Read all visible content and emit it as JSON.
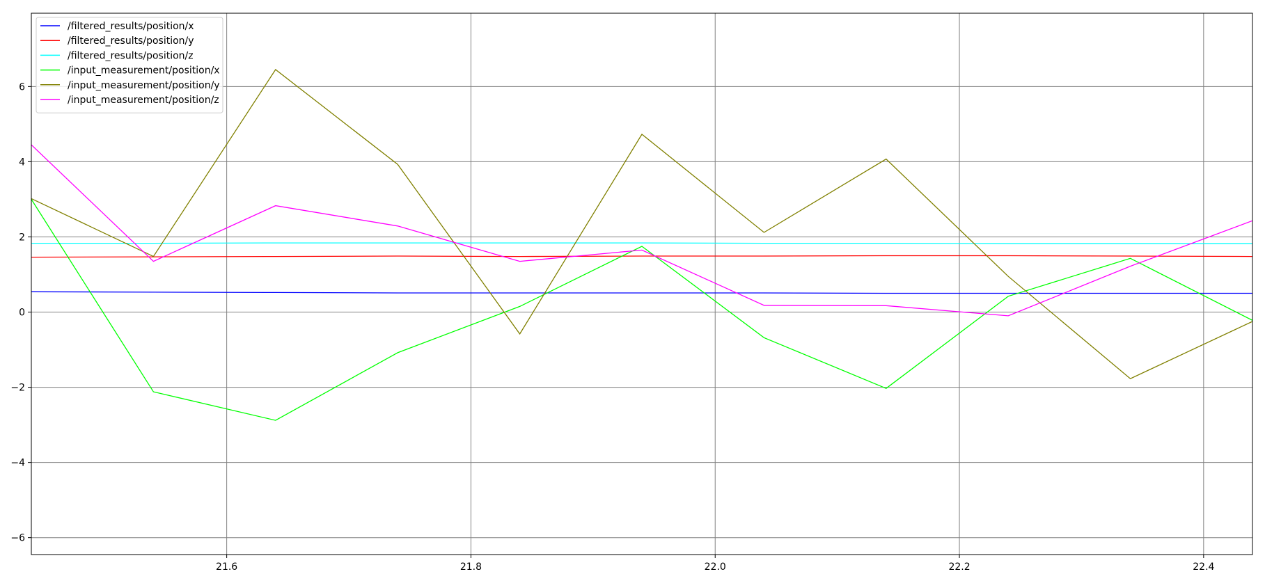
{
  "chart_data": {
    "type": "line",
    "title": "",
    "xlabel": "",
    "ylabel": "",
    "xlim": [
      21.44,
      22.44
    ],
    "ylim": [
      -6.45,
      7.95
    ],
    "grid": true,
    "legend_position": "top-left",
    "x_ticks": [
      21.6,
      21.8,
      22.0,
      22.2,
      22.4
    ],
    "x_tick_labels": [
      "21.6",
      "21.8",
      "22.0",
      "22.2",
      "22.4"
    ],
    "y_ticks": [
      -6,
      -4,
      -2,
      0,
      2,
      4,
      6
    ],
    "y_tick_labels": [
      "−6",
      "−4",
      "−2",
      "0",
      "2",
      "4",
      "6"
    ],
    "series": [
      {
        "name": "/filtered_results/position/x",
        "color": "#0000ff",
        "x": [
          21.44,
          21.54,
          21.64,
          21.74,
          21.84,
          21.94,
          22.04,
          22.14,
          22.24,
          22.34,
          22.44
        ],
        "y": [
          0.54,
          0.53,
          0.52,
          0.51,
          0.51,
          0.51,
          0.51,
          0.5,
          0.5,
          0.5,
          0.5
        ]
      },
      {
        "name": "/filtered_results/position/y",
        "color": "#ff0000",
        "x": [
          21.44,
          21.54,
          21.64,
          21.74,
          21.84,
          21.94,
          22.04,
          22.14,
          22.24,
          22.34,
          22.44
        ],
        "y": [
          1.46,
          1.47,
          1.48,
          1.49,
          1.48,
          1.49,
          1.49,
          1.5,
          1.5,
          1.49,
          1.48
        ]
      },
      {
        "name": "/filtered_results/position/z",
        "color": "#00ffff",
        "x": [
          21.44,
          21.54,
          21.64,
          21.74,
          21.84,
          21.94,
          22.04,
          22.14,
          22.24,
          22.34,
          22.44
        ],
        "y": [
          1.83,
          1.83,
          1.84,
          1.84,
          1.84,
          1.84,
          1.83,
          1.83,
          1.82,
          1.82,
          1.82
        ]
      },
      {
        "name": "/input_measurement/position/x",
        "color": "#00ff00",
        "x": [
          21.44,
          21.54,
          21.64,
          21.74,
          21.84,
          21.94,
          22.04,
          22.14,
          22.24,
          22.34,
          22.44
        ],
        "y": [
          3.0,
          -2.12,
          -2.88,
          -1.08,
          0.15,
          1.75,
          -0.68,
          -2.03,
          0.42,
          1.43,
          -0.22
        ]
      },
      {
        "name": "/input_measurement/position/y",
        "color": "#808000",
        "x": [
          21.44,
          21.54,
          21.64,
          21.74,
          21.84,
          21.94,
          22.04,
          22.14,
          22.24,
          22.34,
          22.44
        ],
        "y": [
          3.02,
          1.48,
          6.45,
          3.93,
          -0.58,
          4.73,
          2.12,
          4.07,
          0.95,
          -1.77,
          -0.25
        ]
      },
      {
        "name": "/input_measurement/position/z",
        "color": "#ff00ff",
        "x": [
          21.44,
          21.54,
          21.64,
          21.74,
          21.84,
          21.94,
          22.04,
          22.14,
          22.24,
          22.34,
          22.44
        ],
        "y": [
          4.45,
          1.35,
          2.83,
          2.29,
          1.35,
          1.65,
          0.18,
          0.17,
          -0.1,
          1.22,
          2.43
        ]
      }
    ]
  }
}
